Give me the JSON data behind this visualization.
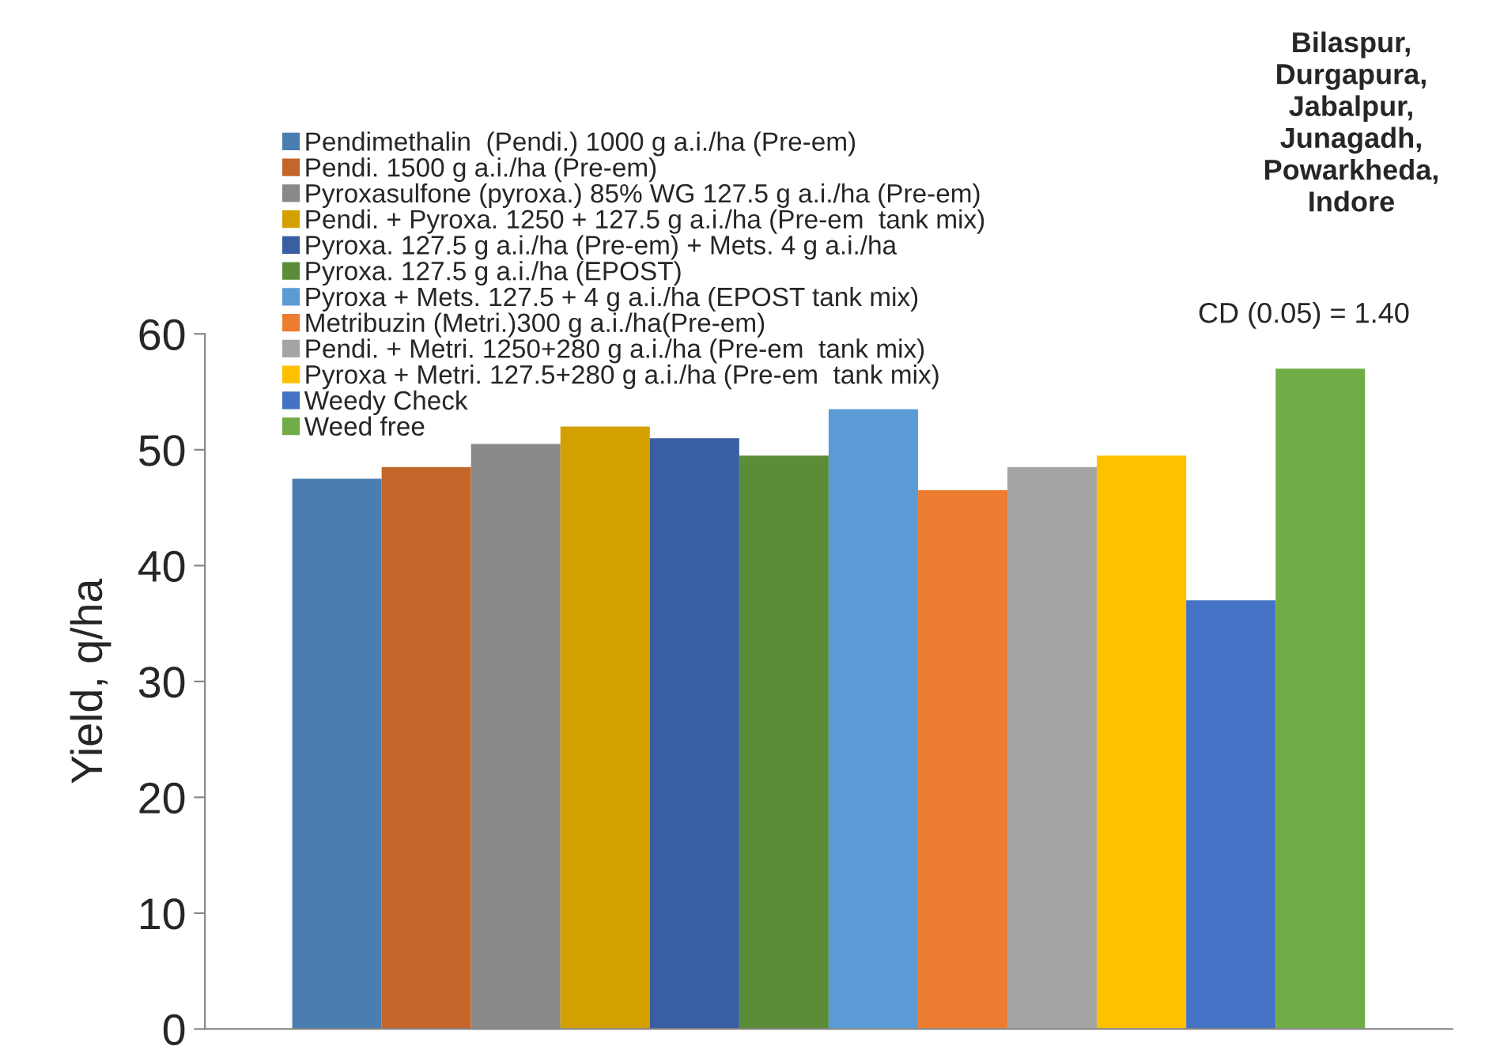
{
  "chart_data": {
    "type": "bar",
    "ylabel": "Yield, q/ha",
    "categories": [
      null
    ],
    "series": [
      {
        "name": "Pendimethalin  (Pendi.) 1000 g a.i./ha (Pre-em)",
        "color": "#4a7eb0",
        "values": [
          47.5
        ]
      },
      {
        "name": "Pendi. 1500 g a.i./ha (Pre-em)",
        "color": "#c4652a",
        "values": [
          48.5
        ]
      },
      {
        "name": "Pyroxasulfone (pyroxa.) 85% WG 127.5 g a.i./ha (Pre-em)",
        "color": "#898989",
        "values": [
          50.5
        ]
      },
      {
        "name": "Pendi. + Pyroxa. 1250 + 127.5 g a.i./ha (Pre-em  tank mix)",
        "color": "#d4a000",
        "values": [
          52
        ]
      },
      {
        "name": "Pyroxa. 127.5 g a.i./ha (Pre-em) + Mets. 4 g a.i./ha",
        "color": "#3a5ea2",
        "values": [
          51
        ]
      },
      {
        "name": "Pyroxa. 127.5 g a.i./ha (EPOST)",
        "color": "#5b8d39",
        "values": [
          49.5
        ]
      },
      {
        "name": "Pyroxa + Mets. 127.5 + 4 g a.i./ha (EPOST tank mix)",
        "color": "#5a9bd5",
        "values": [
          53.5
        ]
      },
      {
        "name": "Metribuzin (Metri.)300 g a.i./ha(Pre-em)",
        "color": "#ed7d31",
        "values": [
          46.5
        ]
      },
      {
        "name": "Pendi. + Metri. 1250+280 g a.i./ha (Pre-em  tank mix)",
        "color": "#a5a5a5",
        "values": [
          48.5
        ]
      },
      {
        "name": "Pyroxa + Metri. 127.5+280 g a.i./ha (Pre-em  tank mix)",
        "color": "#ffc000",
        "values": [
          49.5
        ]
      },
      {
        "name": "Weedy Check",
        "color": "#4472c4",
        "values": [
          37
        ]
      },
      {
        "name": "Weed free",
        "color": "#70ad47",
        "values": [
          57
        ]
      }
    ],
    "ylim": [
      0,
      60
    ],
    "yticks": [
      0,
      10,
      20,
      30,
      40,
      50,
      60
    ],
    "tick_labels": "y",
    "grid": false,
    "legend": "top left",
    "annotations": [
      "Bilaspur,\nDurgapura,\nJabalpur,\nJunagadh,\nPowarkheda,\nIndore",
      "CD (0.05) = 1.40"
    ]
  }
}
